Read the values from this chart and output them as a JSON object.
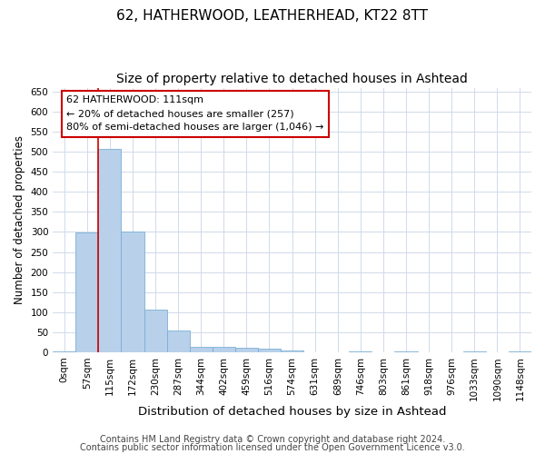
{
  "title_line1": "62, HATHERWOOD, LEATHERHEAD, KT22 8TT",
  "title_line2": "Size of property relative to detached houses in Ashtead",
  "xlabel": "Distribution of detached houses by size in Ashtead",
  "ylabel": "Number of detached properties",
  "bar_labels": [
    "0sqm",
    "57sqm",
    "115sqm",
    "172sqm",
    "230sqm",
    "287sqm",
    "344sqm",
    "402sqm",
    "459sqm",
    "516sqm",
    "574sqm",
    "631sqm",
    "689sqm",
    "746sqm",
    "803sqm",
    "861sqm",
    "918sqm",
    "976sqm",
    "1033sqm",
    "1090sqm",
    "1148sqm"
  ],
  "bar_values": [
    2,
    298,
    508,
    301,
    107,
    53,
    13,
    13,
    12,
    8,
    4,
    0,
    0,
    2,
    0,
    1,
    0,
    0,
    2,
    0,
    2
  ],
  "bar_color": "#b8d0ea",
  "bar_edge_color": "#7aafd4",
  "vline_x_index": 1.5,
  "vline_color": "#cc0000",
  "annotation_text": "62 HATHERWOOD: 111sqm\n← 20% of detached houses are smaller (257)\n80% of semi-detached houses are larger (1,046) →",
  "annotation_box_color": "#ffffff",
  "annotation_box_edge": "#cc0000",
  "ylim": [
    0,
    660
  ],
  "yticks": [
    0,
    50,
    100,
    150,
    200,
    250,
    300,
    350,
    400,
    450,
    500,
    550,
    600,
    650
  ],
  "grid_color": "#d0daea",
  "footer_line1": "Contains HM Land Registry data © Crown copyright and database right 2024.",
  "footer_line2": "Contains public sector information licensed under the Open Government Licence v3.0.",
  "bg_color": "#ffffff",
  "title_fontsize": 11,
  "subtitle_fontsize": 10,
  "xlabel_fontsize": 9.5,
  "ylabel_fontsize": 8.5,
  "tick_fontsize": 7.5,
  "annot_fontsize": 8,
  "footer_fontsize": 7
}
